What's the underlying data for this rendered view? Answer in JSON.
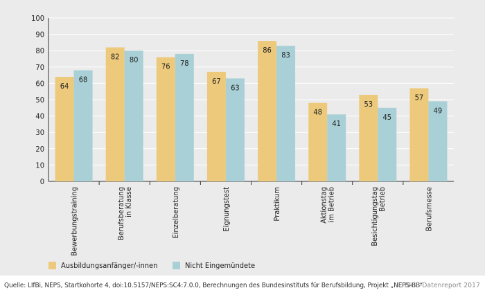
{
  "colors": {
    "series1": "#edc97b",
    "series2": "#a8d0d6",
    "grid": "#ffffff",
    "axis": "#333333",
    "text": "#222222",
    "background": "#ebebeb"
  },
  "chart_data": {
    "type": "bar",
    "categories": [
      [
        "Bewerbungstraining"
      ],
      [
        "Berufsberatung",
        "in Klasse"
      ],
      [
        "Einzelberatung"
      ],
      [
        "Eignungstest"
      ],
      [
        "Praktikum"
      ],
      [
        "Aktionstag",
        "im Betrieb"
      ],
      [
        "Besichtigungstag",
        "Betrieb"
      ],
      [
        "Berufsmesse"
      ]
    ],
    "series": [
      {
        "name": "Ausbildungsanfänger/-innen",
        "values": [
          64,
          82,
          76,
          67,
          86,
          48,
          53,
          57
        ]
      },
      {
        "name": "Nicht Eingemündete",
        "values": [
          68,
          80,
          78,
          63,
          83,
          41,
          45,
          49
        ]
      }
    ],
    "ylim": [
      0,
      100
    ],
    "yticks": [
      0,
      10,
      20,
      30,
      40,
      50,
      60,
      70,
      80,
      90,
      100
    ],
    "grid": true,
    "legend_position": "bottom-left"
  },
  "footer": {
    "source": "Quelle: LIfBi, NEPS, Startkohorte 4, doi:10.5157/NEPS:SC4:7.0.0, Berechnungen des Bundesinstituts für Berufsbildung, Projekt „NEPS-BB“",
    "report": "BIBB-Datenreport 2017"
  }
}
